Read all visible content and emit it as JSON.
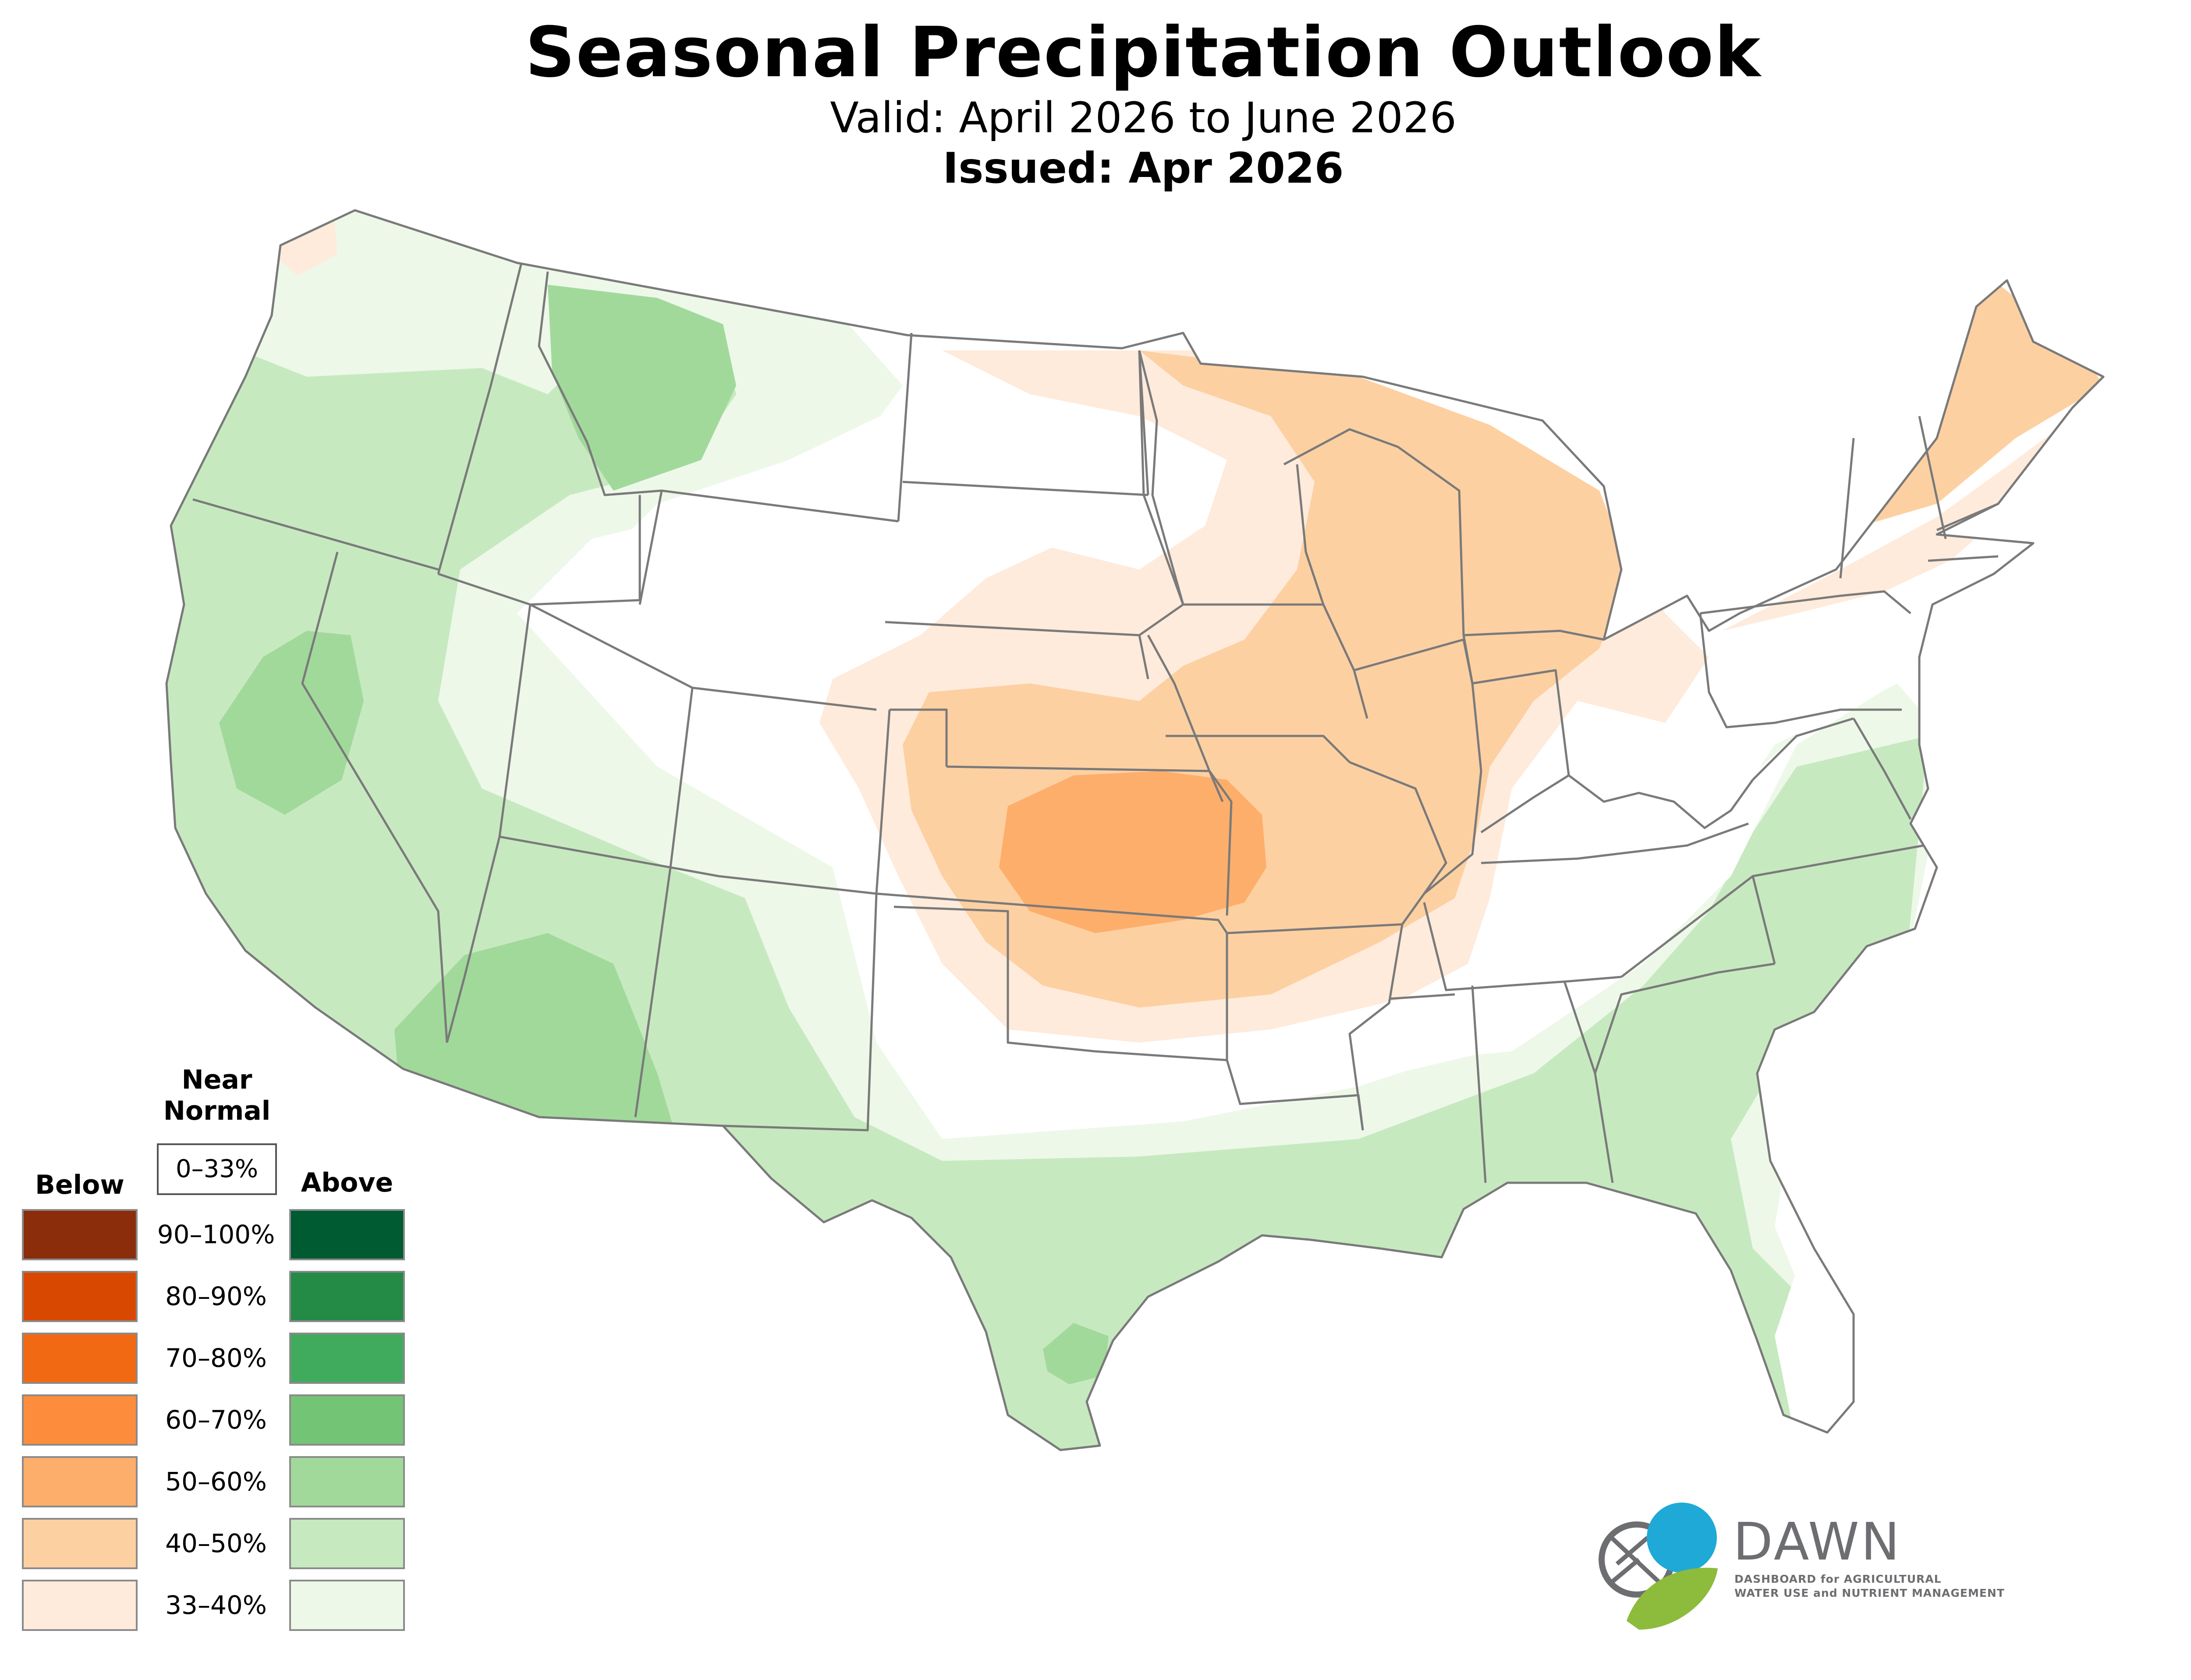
{
  "header": {
    "title": "Seasonal Precipitation Outlook",
    "valid": "Valid: April 2026 to June 2026",
    "issued": "Issued: Apr 2026"
  },
  "legend": {
    "near_normal_heading": "Near\nNormal",
    "near_normal_range": "0–33%",
    "below_heading": "Below",
    "above_heading": "Above",
    "rows": [
      {
        "label": "90–100%",
        "below_color": "#8b2c0a",
        "above_color": "#005a32"
      },
      {
        "label": "80–90%",
        "below_color": "#d94801",
        "above_color": "#238b45"
      },
      {
        "label": "70–80%",
        "below_color": "#f16913",
        "above_color": "#41ab5d"
      },
      {
        "label": "60–70%",
        "below_color": "#fd8d3c",
        "above_color": "#74c476"
      },
      {
        "label": "50–60%",
        "below_color": "#fdae6b",
        "above_color": "#a1d99b"
      },
      {
        "label": "40–50%",
        "below_color": "#fdd0a2",
        "above_color": "#c7e9c0"
      },
      {
        "label": "33–40%",
        "below_color": "#feebdc",
        "above_color": "#edf8e9"
      }
    ]
  },
  "logo": {
    "name": "DAWN",
    "line1": "DASHBOARD for AGRICULTURAL",
    "line2": "WATER USE and NUTRIENT MANAGEMENT",
    "colors": {
      "blue": "#1fa9d7",
      "green": "#8dbb3c",
      "gray": "#6d6e71"
    }
  },
  "map": {
    "region": "Contiguous United States",
    "category_colors": {
      "below_33_40": "#feebdc",
      "below_40_50": "#fdd0a2",
      "below_50_60": "#fdae6b",
      "above_33_40": "#edf8e9",
      "above_40_50": "#c7e9c0",
      "above_50_60": "#a1d99b"
    },
    "state_border_color": "#7a7a7a"
  }
}
